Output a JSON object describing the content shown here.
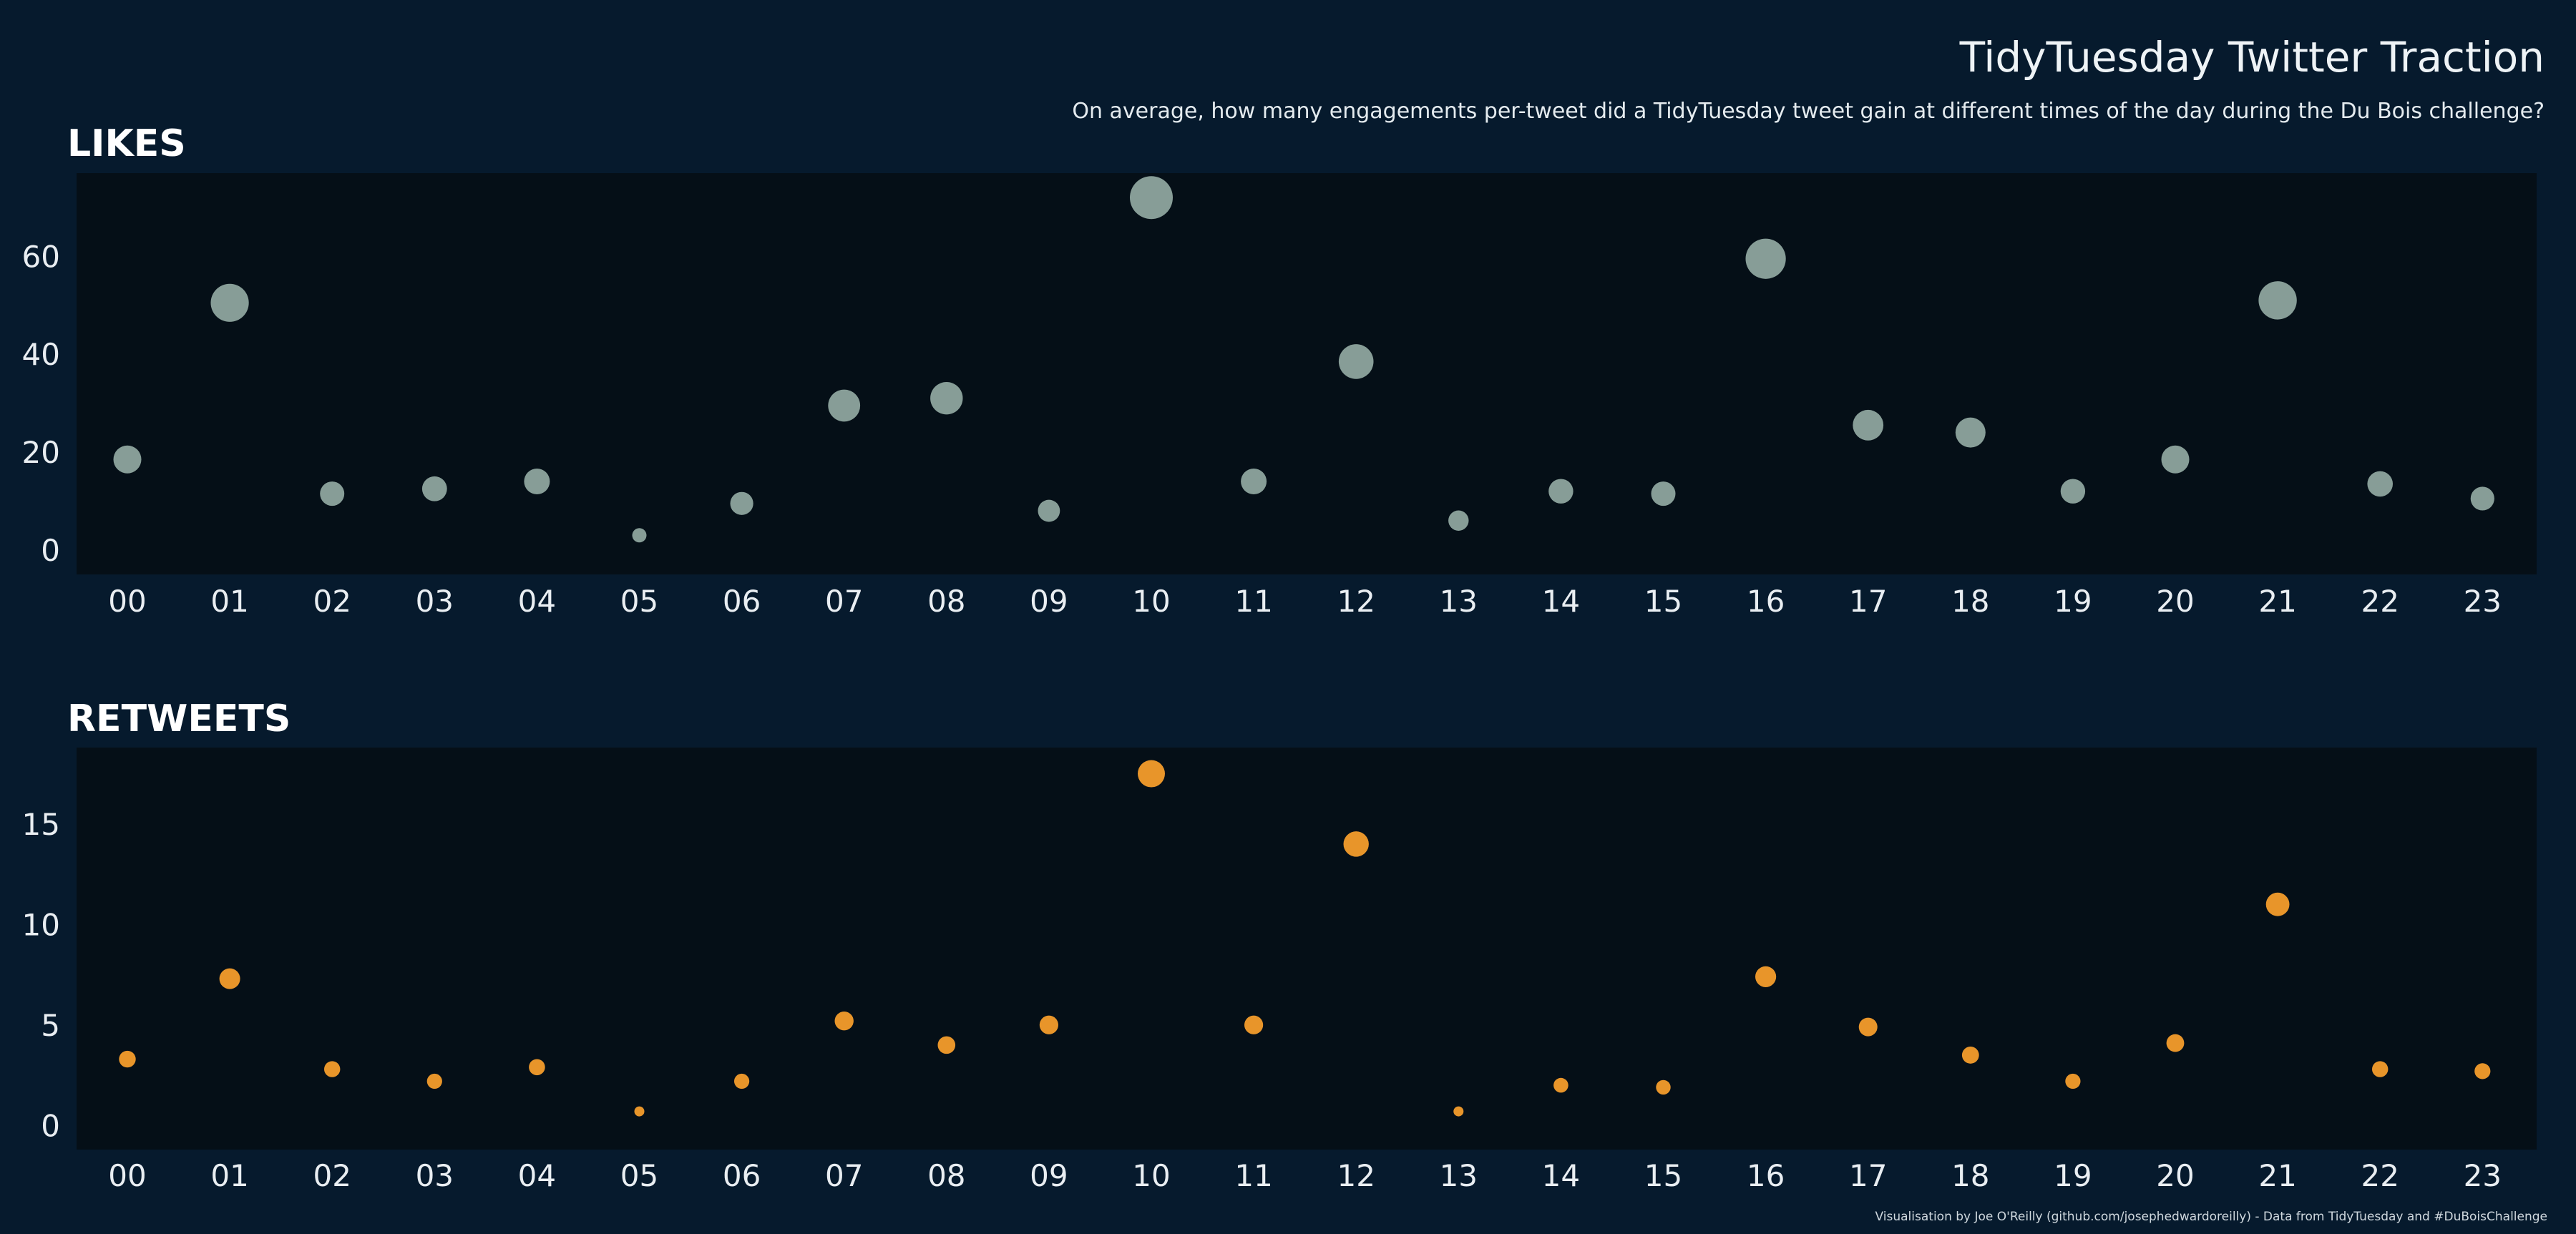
{
  "title": "TidyTuesday Twitter Traction",
  "subtitle": "On average, how many engagements per-tweet did a TidyTuesday tweet gain at different times of the day during the Du Bois challenge?",
  "caption": "Visualisation by Joe O'Reilly (github.com/josephedwardoreilly) - Data from TidyTuesday and #DuBoisChallenge",
  "colors": {
    "background": "#061a2d",
    "panel": "#050f17",
    "likes_point": "#8ea59e",
    "retweets_point": "#e8952a",
    "text": "#e9eef2"
  },
  "chart_data": [
    {
      "type": "scatter",
      "title": "LIKES",
      "categories": [
        "00",
        "01",
        "02",
        "03",
        "04",
        "05",
        "06",
        "07",
        "08",
        "09",
        "10",
        "11",
        "12",
        "13",
        "14",
        "15",
        "16",
        "17",
        "18",
        "19",
        "20",
        "21",
        "22",
        "23"
      ],
      "values": [
        18.5,
        50.5,
        11.5,
        12.5,
        14,
        3,
        9.5,
        29.5,
        31,
        8,
        72,
        14,
        38.5,
        6,
        12,
        11.5,
        59.5,
        25.5,
        24,
        12,
        18.5,
        51,
        13.5,
        10.5
      ],
      "yticks": [
        0,
        20,
        40,
        60
      ],
      "ylim": [
        -5,
        77
      ],
      "size_encodes_value": true,
      "grid": false
    },
    {
      "type": "scatter",
      "title": "RETWEETS",
      "categories": [
        "00",
        "01",
        "02",
        "03",
        "04",
        "05",
        "06",
        "07",
        "08",
        "09",
        "10",
        "11",
        "12",
        "13",
        "14",
        "15",
        "16",
        "17",
        "18",
        "19",
        "20",
        "21",
        "22",
        "23"
      ],
      "values": [
        3.3,
        7.3,
        2.8,
        2.2,
        2.9,
        0.7,
        2.2,
        5.2,
        4.0,
        5.0,
        17.5,
        5.0,
        14.0,
        0.7,
        2.0,
        1.9,
        7.4,
        4.9,
        3.5,
        2.2,
        4.1,
        11.0,
        2.8,
        2.7
      ],
      "yticks": [
        0,
        5,
        10,
        15
      ],
      "ylim": [
        -1.2,
        18.8
      ],
      "size_encodes_value": true,
      "grid": false
    }
  ]
}
